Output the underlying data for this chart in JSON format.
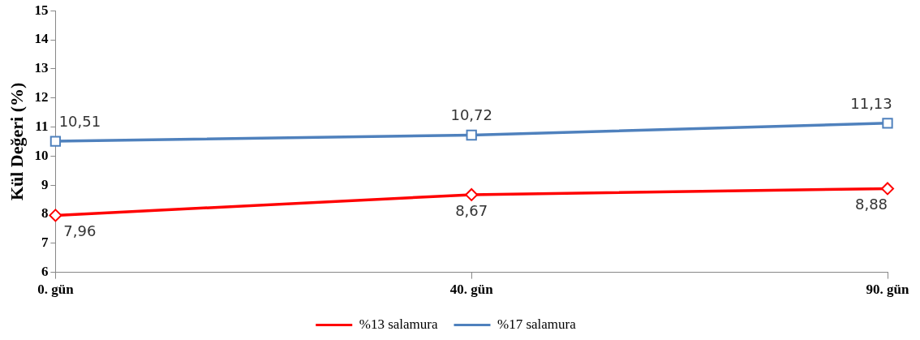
{
  "chart_data": {
    "type": "line",
    "ylabel": "Kül Değeri (%)",
    "categories": [
      "0. gün",
      "40. gün",
      "90. gün"
    ],
    "series": [
      {
        "name": "%13 salamura",
        "color": "#ff0000",
        "values": [
          7.96,
          8.67,
          8.88
        ],
        "marker": "diamond",
        "value_labels": [
          "7,96",
          "8,67",
          "8,88"
        ]
      },
      {
        "name": "%17 salamura",
        "color": "#4f81bd",
        "values": [
          10.51,
          10.72,
          11.13
        ],
        "marker": "square",
        "value_labels": [
          "10,51",
          "10,72",
          "11,13"
        ]
      }
    ],
    "ylim": [
      6,
      15
    ],
    "yticks": [
      6,
      7,
      8,
      9,
      10,
      11,
      12,
      13,
      14,
      15
    ],
    "grid": false,
    "legend": "bottom"
  }
}
